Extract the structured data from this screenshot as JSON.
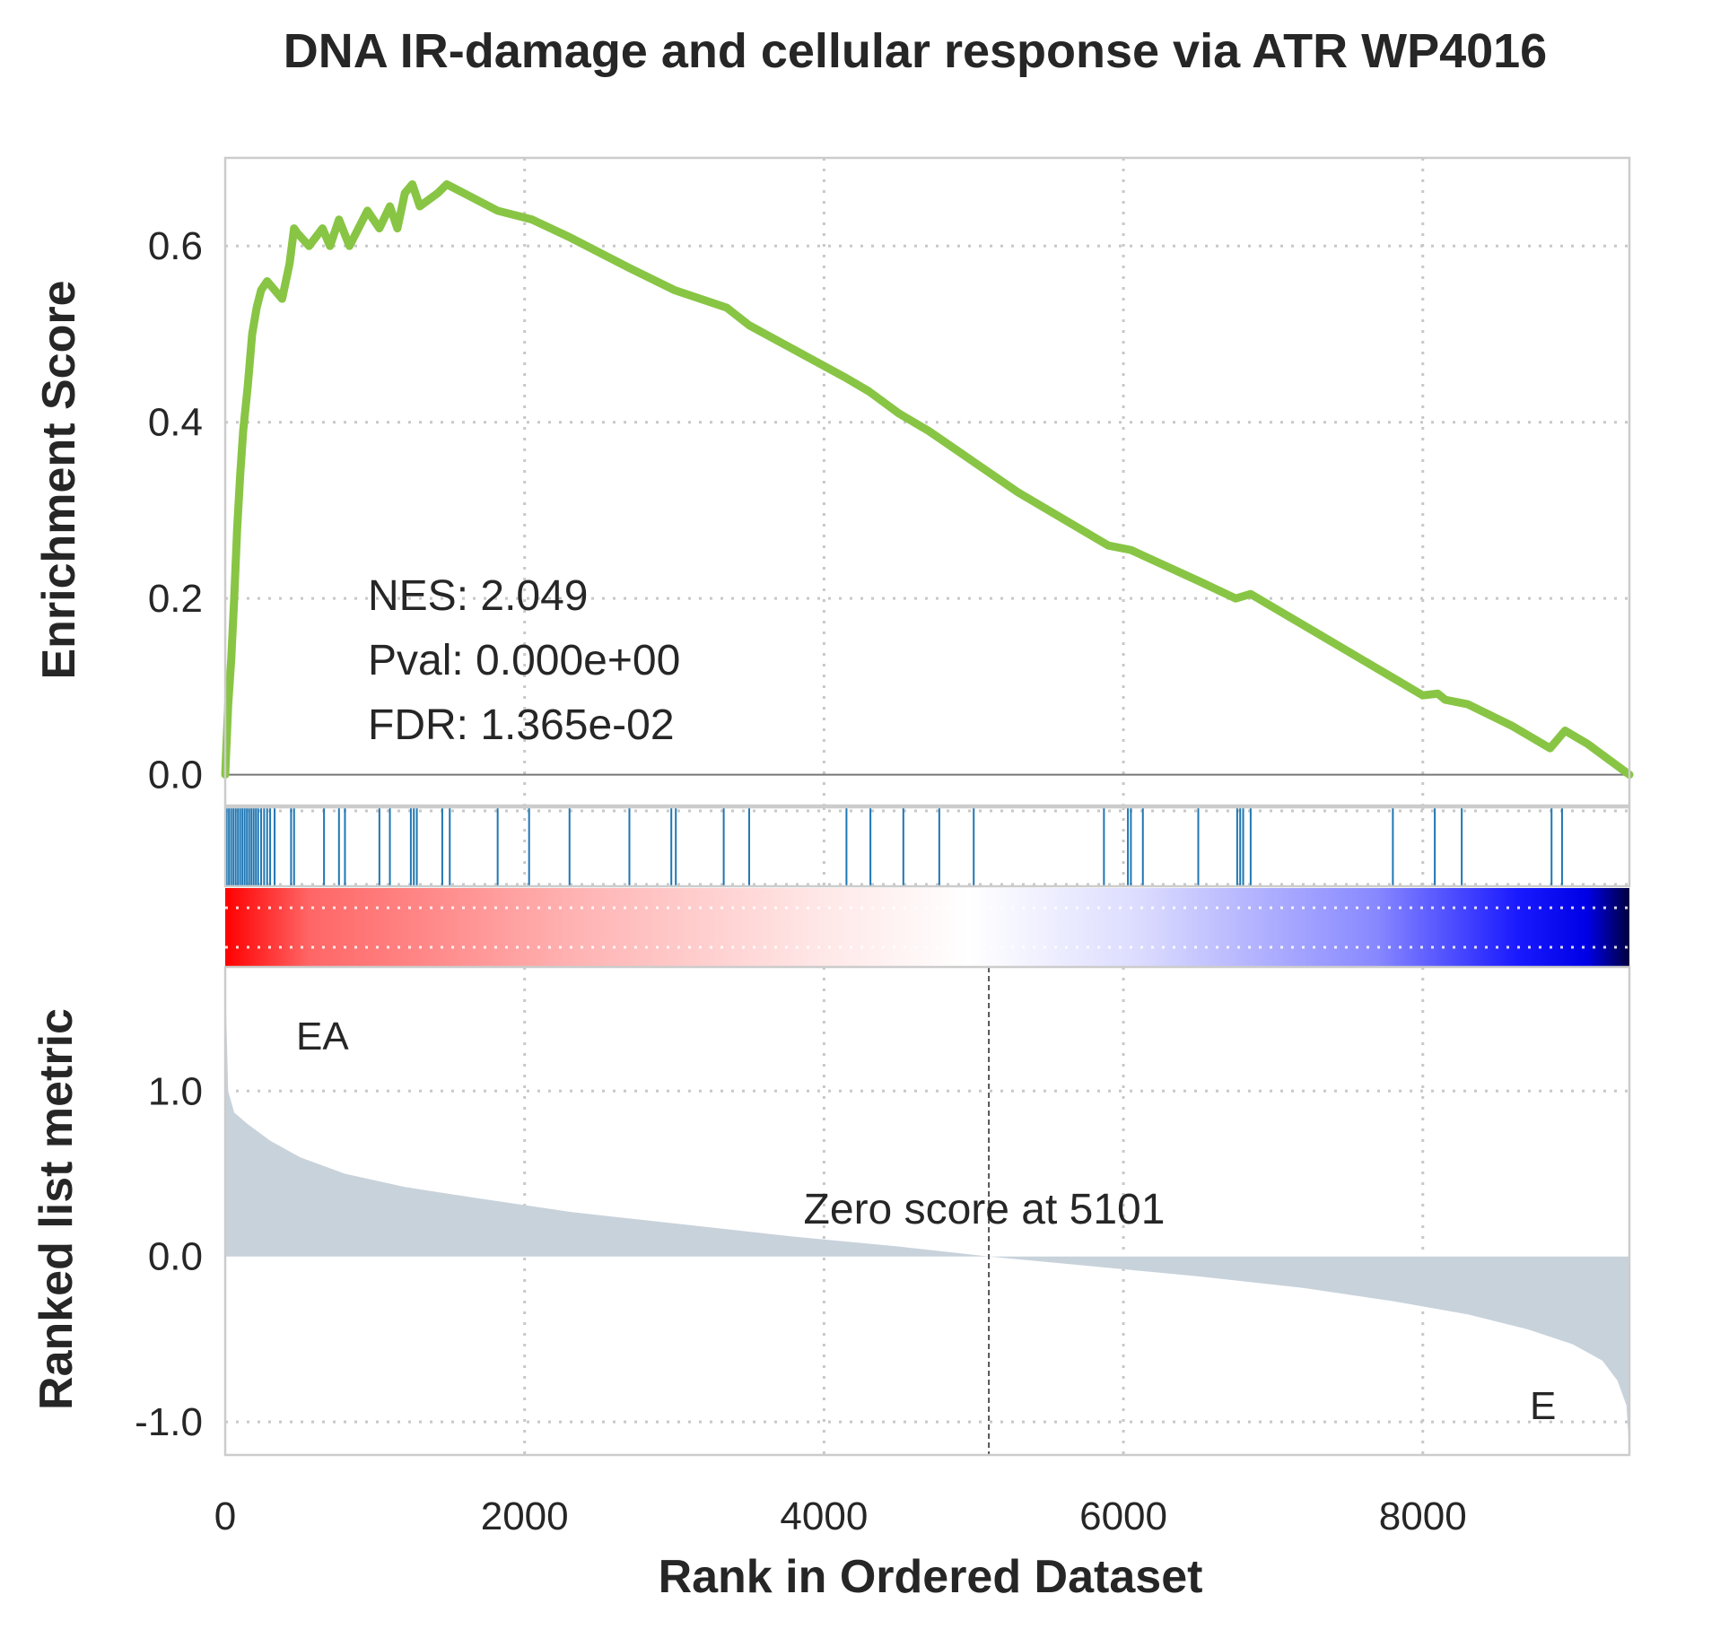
{
  "chart_data": {
    "type": "line",
    "title": "DNA IR-damage and cellular response via ATR WP4016",
    "xlabel": "Rank in Ordered Dataset",
    "xlim": [
      0,
      9380
    ],
    "x_ticks": [
      0,
      2000,
      4000,
      6000,
      8000
    ],
    "x_tick_labels": [
      "0",
      "2000",
      "4000",
      "6000",
      "8000"
    ],
    "enrichment": {
      "ylabel": "Enrichment Score",
      "ylim": [
        -0.035,
        0.7
      ],
      "y_ticks": [
        0.0,
        0.2,
        0.4,
        0.6
      ],
      "y_tick_labels": [
        "0.0",
        "0.2",
        "0.4",
        "0.6"
      ],
      "color": "#88c544",
      "x": [
        0,
        20,
        40,
        60,
        80,
        100,
        120,
        150,
        180,
        210,
        240,
        280,
        330,
        380,
        430,
        460,
        480,
        560,
        650,
        700,
        760,
        830,
        950,
        1030,
        1100,
        1150,
        1200,
        1250,
        1300,
        1420,
        1480,
        1820,
        2050,
        2300,
        2700,
        3000,
        3350,
        3500,
        4150,
        4300,
        4500,
        4700,
        5000,
        5300,
        5600,
        5900,
        6050,
        6500,
        6750,
        6850,
        7000,
        7400,
        7800,
        8000,
        8100,
        8150,
        8300,
        8600,
        8850,
        8950,
        9100,
        9380
      ],
      "y": [
        0.0,
        0.08,
        0.13,
        0.2,
        0.28,
        0.34,
        0.39,
        0.44,
        0.5,
        0.53,
        0.55,
        0.56,
        0.55,
        0.54,
        0.58,
        0.62,
        0.615,
        0.6,
        0.62,
        0.6,
        0.63,
        0.6,
        0.64,
        0.62,
        0.645,
        0.62,
        0.66,
        0.67,
        0.645,
        0.66,
        0.67,
        0.64,
        0.63,
        0.61,
        0.575,
        0.55,
        0.53,
        0.51,
        0.45,
        0.435,
        0.41,
        0.39,
        0.355,
        0.32,
        0.29,
        0.26,
        0.255,
        0.22,
        0.2,
        0.205,
        0.19,
        0.15,
        0.11,
        0.09,
        0.092,
        0.085,
        0.08,
        0.055,
        0.03,
        0.05,
        0.035,
        0.0
      ]
    },
    "hits": [
      10,
      25,
      40,
      55,
      70,
      85,
      100,
      115,
      130,
      145,
      160,
      175,
      190,
      205,
      220,
      240,
      260,
      280,
      300,
      330,
      440,
      460,
      660,
      760,
      800,
      1030,
      1100,
      1240,
      1260,
      1280,
      1450,
      1500,
      1820,
      2030,
      2300,
      2700,
      2980,
      3010,
      3330,
      3500,
      4150,
      4310,
      4530,
      4770,
      5000,
      5870,
      6030,
      6050,
      6130,
      6500,
      6760,
      6780,
      6800,
      6850,
      7800,
      8080,
      8260,
      8860,
      8930
    ],
    "ranked_metric": {
      "ylabel": "Ranked list metric",
      "ylim": [
        -1.2,
        1.75
      ],
      "y_ticks": [
        1.0,
        0.0,
        -1.0
      ],
      "y_tick_labels": [
        "1.0",
        "0.0",
        "-1.0"
      ],
      "fill_color": "#c8d2db",
      "x": [
        0,
        20,
        60,
        150,
        300,
        500,
        800,
        1200,
        1700,
        2300,
        3000,
        3800,
        4500,
        5101,
        5800,
        6500,
        7200,
        7800,
        8300,
        8700,
        9000,
        9200,
        9300,
        9360,
        9380
      ],
      "y": [
        1.7,
        1.0,
        0.87,
        0.8,
        0.7,
        0.6,
        0.5,
        0.42,
        0.35,
        0.27,
        0.2,
        0.12,
        0.06,
        0.0,
        -0.06,
        -0.12,
        -0.19,
        -0.27,
        -0.35,
        -0.44,
        -0.53,
        -0.63,
        -0.75,
        -0.9,
        -1.18
      ]
    },
    "colorbar": {
      "stops": [
        "#ff0000",
        "#ffffff",
        "#0000ff",
        "#000033"
      ]
    },
    "zero_score_rank": 5101
  },
  "annotations": {
    "nes": "NES: 2.049",
    "pval": "Pval: 0.000e+00",
    "fdr": "FDR: 1.365e-02",
    "zero_score": "Zero score at 5101",
    "pos_label": "EA",
    "neg_label": "E",
    "pos_color": "#ff0000",
    "neg_color": "#0000ff"
  }
}
